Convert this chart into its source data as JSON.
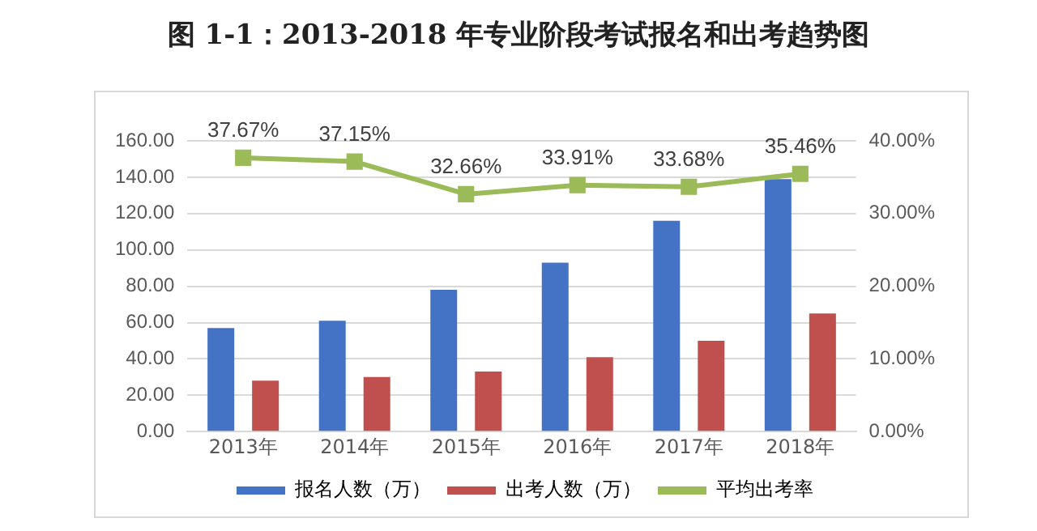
{
  "chart_data": {
    "type": "bar",
    "title": "图 1-1：2013-2018 年专业阶段考试报名和出考趋势图",
    "categories": [
      "2013年",
      "2014年",
      "2015年",
      "2016年",
      "2017年",
      "2018年"
    ],
    "series": [
      {
        "name": "报名人数（万）",
        "color": "#4472c4",
        "values": [
          57,
          61,
          78,
          93,
          116,
          139
        ]
      },
      {
        "name": "出考人数（万）",
        "color": "#c0504d",
        "values": [
          28,
          30,
          33,
          41,
          50,
          65
        ]
      },
      {
        "name": "平均出考率",
        "type": "line",
        "axis": "y2",
        "color": "#9bbb59",
        "marker": "square",
        "values": [
          37.67,
          37.15,
          32.66,
          33.91,
          33.68,
          35.46
        ],
        "value_labels": [
          "37.67%",
          "37.15%",
          "32.66%",
          "33.91%",
          "33.68%",
          "35.46%"
        ]
      }
    ],
    "ylim": [
      0,
      160
    ],
    "yticks": [
      {
        "value": 0,
        "label": "0.00"
      },
      {
        "value": 20,
        "label": "20.00"
      },
      {
        "value": 40,
        "label": "40.00"
      },
      {
        "value": 60,
        "label": "60.00"
      },
      {
        "value": 80,
        "label": "80.00"
      },
      {
        "value": 100,
        "label": "100.00"
      },
      {
        "value": 120,
        "label": "120.00"
      },
      {
        "value": 140,
        "label": "140.00"
      },
      {
        "value": 160,
        "label": "160.00"
      }
    ],
    "y2lim": [
      0,
      40
    ],
    "y2ticks": [
      {
        "value": 0,
        "label": "0.00%"
      },
      {
        "value": 10,
        "label": "10.00%"
      },
      {
        "value": 20,
        "label": "20.00%"
      },
      {
        "value": 30,
        "label": "30.00%"
      },
      {
        "value": 40,
        "label": "40.00%"
      }
    ],
    "grid": "y",
    "legend": "bottom"
  }
}
